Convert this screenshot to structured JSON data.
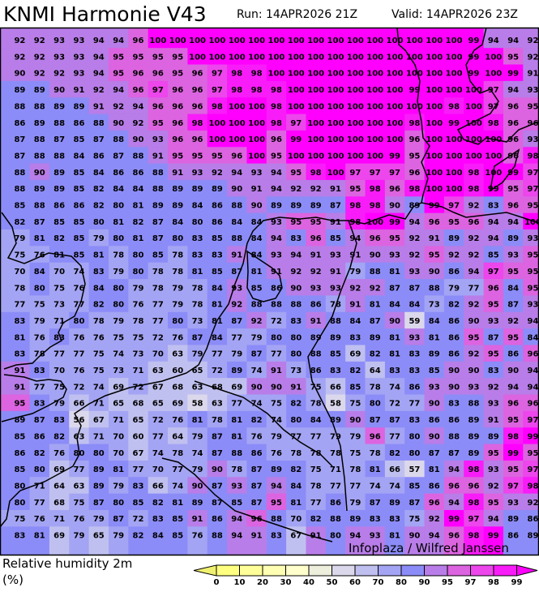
{
  "header": {
    "title": "KNMI Harmonie V43",
    "run": "Run: 14APR2026 21Z",
    "valid": "Valid: 14APR2026 23Z"
  },
  "legend": {
    "title": "Relative humidity 2m",
    "unit": "(%)",
    "labels": [
      "0",
      "10",
      "20",
      "30",
      "40",
      "50",
      "60",
      "70",
      "80",
      "90",
      "95",
      "97",
      "98",
      "99"
    ],
    "below_color": "#f0f070",
    "above_color": "#ff00ff",
    "colors": [
      "#ffff80",
      "#ffff99",
      "#ffffb3",
      "#ffffcc",
      "#eeeedd",
      "#dcd8ec",
      "#c0c0f0",
      "#a4a4f4",
      "#8c8cf8",
      "#b87de8",
      "#dc64e0",
      "#ec46ec",
      "#f81cf8"
    ]
  },
  "watermark": "Infoplaza / Wilfred Janssen",
  "map": {
    "variable": "Relative humidity 2m (%)",
    "grid": [
      [
        92,
        92,
        93,
        93,
        94,
        94,
        96,
        100,
        100,
        100,
        100,
        100,
        100,
        100,
        100,
        100,
        100,
        100,
        100,
        100,
        100,
        100,
        100,
        99,
        94,
        94,
        92
      ],
      [
        92,
        92,
        93,
        93,
        94,
        95,
        95,
        95,
        95,
        100,
        100,
        100,
        100,
        100,
        100,
        100,
        100,
        100,
        100,
        100,
        100,
        100,
        100,
        99,
        100,
        95,
        92
      ],
      [
        90,
        92,
        92,
        93,
        94,
        95,
        96,
        96,
        95,
        96,
        97,
        98,
        98,
        100,
        100,
        100,
        100,
        100,
        100,
        100,
        100,
        100,
        100,
        99,
        100,
        99,
        91
      ],
      [
        89,
        89,
        90,
        91,
        92,
        94,
        96,
        97,
        96,
        96,
        97,
        98,
        98,
        98,
        100,
        100,
        100,
        100,
        100,
        100,
        99,
        100,
        100,
        100,
        97,
        94,
        93
      ],
      [
        88,
        88,
        89,
        89,
        91,
        92,
        94,
        96,
        96,
        96,
        98,
        100,
        100,
        98,
        100,
        100,
        100,
        100,
        100,
        100,
        100,
        100,
        98,
        100,
        97,
        96,
        95
      ],
      [
        86,
        89,
        88,
        86,
        88,
        90,
        92,
        95,
        96,
        98,
        100,
        100,
        100,
        98,
        97,
        100,
        100,
        100,
        100,
        100,
        98,
        100,
        99,
        100,
        98,
        96,
        96
      ],
      [
        87,
        88,
        87,
        85,
        87,
        88,
        90,
        93,
        96,
        96,
        100,
        100,
        100,
        96,
        99,
        100,
        100,
        100,
        100,
        100,
        96,
        100,
        100,
        100,
        100,
        96,
        93
      ],
      [
        87,
        88,
        88,
        84,
        86,
        87,
        88,
        91,
        95,
        95,
        95,
        96,
        100,
        95,
        100,
        100,
        100,
        100,
        100,
        99,
        95,
        100,
        100,
        100,
        100,
        96,
        98
      ],
      [
        88,
        90,
        89,
        85,
        84,
        86,
        86,
        88,
        91,
        93,
        92,
        94,
        93,
        94,
        95,
        98,
        100,
        97,
        97,
        97,
        96,
        100,
        100,
        98,
        100,
        99,
        97
      ],
      [
        88,
        89,
        89,
        85,
        82,
        84,
        84,
        88,
        89,
        89,
        89,
        90,
        91,
        94,
        92,
        92,
        91,
        95,
        98,
        96,
        98,
        100,
        100,
        98,
        99,
        95,
        97
      ],
      [
        85,
        88,
        86,
        86,
        82,
        80,
        81,
        89,
        89,
        84,
        86,
        88,
        90,
        89,
        89,
        89,
        87,
        98,
        98,
        90,
        89,
        99,
        97,
        92,
        83,
        96,
        95
      ],
      [
        82,
        87,
        85,
        85,
        80,
        81,
        82,
        87,
        84,
        80,
        86,
        84,
        84,
        93,
        95,
        95,
        91,
        98,
        100,
        99,
        94,
        96,
        95,
        96,
        94,
        94,
        100
      ],
      [
        79,
        81,
        82,
        85,
        79,
        80,
        81,
        87,
        80,
        83,
        85,
        88,
        84,
        94,
        83,
        96,
        85,
        94,
        96,
        95,
        92,
        91,
        89,
        92,
        94,
        89,
        93
      ],
      [
        75,
        76,
        81,
        85,
        81,
        78,
        80,
        85,
        78,
        83,
        83,
        91,
        84,
        93,
        94,
        91,
        93,
        91,
        90,
        93,
        92,
        95,
        92,
        92,
        85,
        93,
        95
      ],
      [
        70,
        84,
        70,
        74,
        83,
        79,
        80,
        78,
        78,
        81,
        85,
        87,
        81,
        91,
        92,
        92,
        91,
        79,
        88,
        81,
        93,
        90,
        86,
        94,
        97,
        95,
        95
      ],
      [
        78,
        80,
        75,
        76,
        84,
        80,
        79,
        78,
        79,
        78,
        84,
        93,
        85,
        86,
        90,
        93,
        93,
        92,
        92,
        87,
        87,
        88,
        79,
        77,
        96,
        84,
        95
      ],
      [
        77,
        75,
        73,
        77,
        82,
        80,
        76,
        77,
        79,
        78,
        81,
        92,
        88,
        88,
        88,
        86,
        78,
        91,
        81,
        84,
        84,
        73,
        82,
        92,
        95,
        87,
        93
      ],
      [
        83,
        79,
        71,
        80,
        78,
        79,
        78,
        77,
        80,
        73,
        81,
        87,
        92,
        72,
        83,
        91,
        88,
        84,
        87,
        90,
        59,
        84,
        86,
        90,
        93,
        92,
        94
      ],
      [
        81,
        76,
        83,
        76,
        76,
        75,
        75,
        72,
        76,
        87,
        84,
        77,
        79,
        80,
        80,
        89,
        89,
        83,
        89,
        81,
        93,
        81,
        86,
        95,
        87,
        95,
        84
      ],
      [
        83,
        78,
        77,
        77,
        75,
        74,
        73,
        70,
        63,
        79,
        77,
        79,
        87,
        77,
        80,
        88,
        85,
        69,
        82,
        81,
        83,
        89,
        86,
        92,
        95,
        86,
        96
      ],
      [
        91,
        83,
        70,
        76,
        75,
        73,
        71,
        63,
        60,
        65,
        72,
        89,
        74,
        91,
        73,
        86,
        83,
        82,
        64,
        83,
        83,
        85,
        90,
        90,
        83,
        90,
        94
      ],
      [
        91,
        77,
        75,
        72,
        74,
        69,
        72,
        67,
        68,
        63,
        68,
        69,
        90,
        90,
        91,
        75,
        66,
        85,
        78,
        74,
        86,
        93,
        90,
        93,
        92,
        94,
        94
      ],
      [
        95,
        83,
        79,
        66,
        71,
        65,
        68,
        65,
        69,
        58,
        63,
        77,
        74,
        75,
        82,
        78,
        58,
        75,
        80,
        72,
        77,
        90,
        83,
        88,
        93,
        96,
        96
      ],
      [
        89,
        87,
        83,
        56,
        67,
        71,
        65,
        72,
        76,
        81,
        78,
        81,
        82,
        74,
        80,
        84,
        89,
        90,
        87,
        87,
        83,
        86,
        86,
        89,
        91,
        95,
        97
      ],
      [
        85,
        86,
        82,
        63,
        71,
        70,
        60,
        77,
        64,
        79,
        87,
        81,
        76,
        79,
        77,
        77,
        79,
        79,
        96,
        77,
        80,
        90,
        88,
        89,
        89,
        98,
        99
      ],
      [
        86,
        82,
        76,
        80,
        80,
        70,
        67,
        74,
        78,
        74,
        87,
        88,
        86,
        76,
        78,
        78,
        78,
        75,
        78,
        82,
        80,
        87,
        87,
        89,
        95,
        99,
        95
      ],
      [
        85,
        80,
        69,
        77,
        89,
        81,
        77,
        70,
        77,
        79,
        90,
        78,
        87,
        89,
        82,
        75,
        71,
        78,
        81,
        66,
        57,
        81,
        94,
        98,
        93,
        95,
        97
      ],
      [
        80,
        71,
        64,
        63,
        89,
        79,
        83,
        66,
        74,
        90,
        87,
        93,
        87,
        94,
        84,
        78,
        77,
        77,
        74,
        74,
        85,
        86,
        96,
        96,
        92,
        97,
        98
      ],
      [
        80,
        77,
        68,
        75,
        87,
        80,
        85,
        82,
        81,
        89,
        87,
        85,
        87,
        95,
        81,
        77,
        86,
        79,
        87,
        89,
        87,
        96,
        94,
        98,
        95,
        93,
        92
      ],
      [
        75,
        76,
        71,
        76,
        79,
        87,
        72,
        83,
        85,
        91,
        86,
        94,
        96,
        88,
        70,
        82,
        88,
        89,
        83,
        83,
        75,
        92,
        99,
        97,
        94,
        89,
        86
      ],
      [
        83,
        81,
        69,
        79,
        65,
        79,
        82,
        84,
        85,
        76,
        88,
        94,
        91,
        83,
        67,
        91,
        80,
        94,
        93,
        81,
        90,
        94,
        96,
        98,
        99,
        86,
        89
      ]
    ]
  }
}
